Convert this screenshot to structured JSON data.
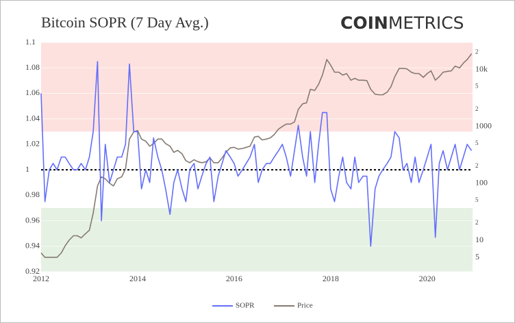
{
  "chart_data": {
    "type": "line",
    "title": "Bitcoin SOPR (7 Day Avg.)",
    "logo": [
      "COIN",
      "METRICS"
    ],
    "x": [
      2012.0,
      2012.08,
      2012.17,
      2012.25,
      2012.33,
      2012.42,
      2012.5,
      2012.58,
      2012.67,
      2012.75,
      2012.83,
      2012.92,
      2013.0,
      2013.08,
      2013.17,
      2013.25,
      2013.33,
      2013.42,
      2013.5,
      2013.58,
      2013.67,
      2013.75,
      2013.83,
      2013.92,
      2014.0,
      2014.08,
      2014.17,
      2014.25,
      2014.33,
      2014.42,
      2014.5,
      2014.58,
      2014.67,
      2014.75,
      2014.83,
      2014.92,
      2015.0,
      2015.08,
      2015.17,
      2015.25,
      2015.33,
      2015.42,
      2015.5,
      2015.58,
      2015.67,
      2015.75,
      2015.83,
      2015.92,
      2016.0,
      2016.08,
      2016.17,
      2016.25,
      2016.33,
      2016.42,
      2016.5,
      2016.58,
      2016.67,
      2016.75,
      2016.83,
      2016.92,
      2017.0,
      2017.08,
      2017.17,
      2017.25,
      2017.33,
      2017.42,
      2017.5,
      2017.58,
      2017.67,
      2017.75,
      2017.83,
      2017.92,
      2018.0,
      2018.08,
      2018.17,
      2018.25,
      2018.33,
      2018.42,
      2018.5,
      2018.58,
      2018.67,
      2018.75,
      2018.83,
      2018.92,
      2019.0,
      2019.08,
      2019.17,
      2019.25,
      2019.33,
      2019.42,
      2019.5,
      2019.58,
      2019.67,
      2019.75,
      2019.83,
      2019.92,
      2020.0,
      2020.08,
      2020.17,
      2020.25,
      2020.33,
      2020.42,
      2020.5,
      2020.58,
      2020.67,
      2020.75,
      2020.83,
      2020.92
    ],
    "series": [
      {
        "name": "SOPR",
        "color": "#636efa",
        "axis": "y",
        "values": [
          1.06,
          0.975,
          1.0,
          1.005,
          1.0,
          1.01,
          1.01,
          1.005,
          1.0,
          1.0,
          1.005,
          1.0,
          1.01,
          1.03,
          1.085,
          0.96,
          1.02,
          0.99,
          1.0,
          1.01,
          1.01,
          1.02,
          1.083,
          1.03,
          1.03,
          0.985,
          1.0,
          0.99,
          1.025,
          1.01,
          1.0,
          0.985,
          0.965,
          0.99,
          1.0,
          0.985,
          0.975,
          1.0,
          1.005,
          0.985,
          0.995,
          1.005,
          1.01,
          0.975,
          0.995,
          1.005,
          1.015,
          1.01,
          1.005,
          0.995,
          1.0,
          1.005,
          1.01,
          1.02,
          0.99,
          1.0,
          1.005,
          1.005,
          1.01,
          1.015,
          1.02,
          1.01,
          0.995,
          1.015,
          1.035,
          1.01,
          0.995,
          1.03,
          0.99,
          1.02,
          1.045,
          1.045,
          0.985,
          0.975,
          0.995,
          1.01,
          0.99,
          0.985,
          1.01,
          0.99,
          0.995,
          0.995,
          0.94,
          0.985,
          0.995,
          1.0,
          1.005,
          1.01,
          1.03,
          1.025,
          1.0,
          1.005,
          0.99,
          1.01,
          0.99,
          1.0,
          1.01,
          1.02,
          0.947,
          1.005,
          1.015,
          1.0,
          1.01,
          1.02,
          1.0,
          1.01,
          1.02,
          1.015
        ]
      },
      {
        "name": "Price",
        "color": "#857a72",
        "axis": "y2",
        "values": [
          6,
          5,
          5,
          5,
          5,
          6,
          8,
          10,
          12,
          12,
          11,
          13,
          15,
          30,
          90,
          130,
          120,
          100,
          90,
          120,
          130,
          180,
          600,
          800,
          850,
          600,
          550,
          450,
          500,
          600,
          600,
          500,
          450,
          350,
          380,
          330,
          250,
          230,
          260,
          240,
          230,
          240,
          280,
          230,
          230,
          280,
          350,
          420,
          430,
          400,
          410,
          430,
          450,
          650,
          670,
          580,
          600,
          630,
          720,
          900,
          1000,
          1100,
          1100,
          1200,
          2000,
          2500,
          2600,
          4500,
          4300,
          5500,
          8000,
          15000,
          12000,
          9000,
          9000,
          8000,
          8500,
          6500,
          7000,
          6500,
          6500,
          6400,
          4500,
          3700,
          3600,
          3600,
          4000,
          5000,
          7500,
          10500,
          10500,
          10300,
          9000,
          8500,
          8500,
          7300,
          8500,
          9500,
          6500,
          7500,
          9000,
          9300,
          9500,
          11500,
          10700,
          13000,
          15000,
          19000
        ]
      }
    ],
    "xlim": [
      2012,
      2020.94
    ],
    "xticks": [
      2012,
      2014,
      2016,
      2018,
      2020
    ],
    "ylim": [
      0.92,
      1.1
    ],
    "yticks": [
      0.92,
      0.94,
      0.96,
      0.98,
      1,
      1.02,
      1.04,
      1.06,
      1.08,
      1.1
    ],
    "y2lim": [
      2.8,
      30000
    ],
    "y2log": true,
    "y2ticks": [
      5,
      10,
      {
        "value": 20,
        "label": "2"
      },
      {
        "value": 50,
        "label": "5"
      },
      100,
      {
        "value": 200,
        "label": "2"
      },
      {
        "value": 500,
        "label": "5"
      },
      1000,
      {
        "value": 2000,
        "label": "2"
      },
      {
        "value": 5000,
        "label": "5"
      },
      {
        "value": 10000,
        "label": "10k"
      },
      {
        "value": 20000,
        "label": "2"
      }
    ],
    "bands": [
      {
        "from": 1.03,
        "to": 1.1,
        "color": "#fde1de"
      },
      {
        "from": 0.92,
        "to": 0.97,
        "color": "#e5f1e2"
      }
    ],
    "reference_line": 1,
    "grid": true,
    "legend": "bottom"
  }
}
